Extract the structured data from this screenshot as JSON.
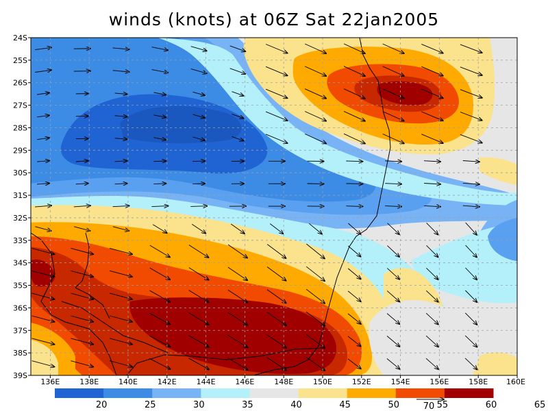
{
  "title": "winds (knots) at 06Z Sat 22jan2005",
  "lat_labels": [
    "24S",
    "25S",
    "26S",
    "27S",
    "28S",
    "29S",
    "30S",
    "31S",
    "32S",
    "33S",
    "34S",
    "35S",
    "36S",
    "37S",
    "38S",
    "39S"
  ],
  "lon_labels": [
    "136E",
    "138E",
    "140E",
    "142E",
    "144E",
    "146E",
    "148E",
    "150E",
    "152E",
    "154E",
    "156E",
    "158E",
    "160E"
  ],
  "colorbar": {
    "colors": [
      "#1f64d2",
      "#3c8ce6",
      "#78b4f5",
      "#b4f0fa",
      "#e6e6e6",
      "#fae38c",
      "#ffaa00",
      "#f04b00",
      "#a00000"
    ],
    "labels": [
      "20",
      "25",
      "30",
      "35",
      "40",
      "45",
      "50",
      "55",
      "60",
      "65"
    ]
  },
  "reference_vector": {
    "label": "70"
  },
  "palette": {
    "c15": "#1f64d2",
    "c20": "#3c8ce6",
    "c25": "#5aa0f0",
    "c30": "#78b4f5",
    "c35": "#b4f0fa",
    "c40": "#e6e6e6",
    "c45": "#fae38c",
    "c50": "#ffaa00",
    "c55": "#f04b00",
    "c60": "#c82800",
    "c65": "#a00000"
  }
}
